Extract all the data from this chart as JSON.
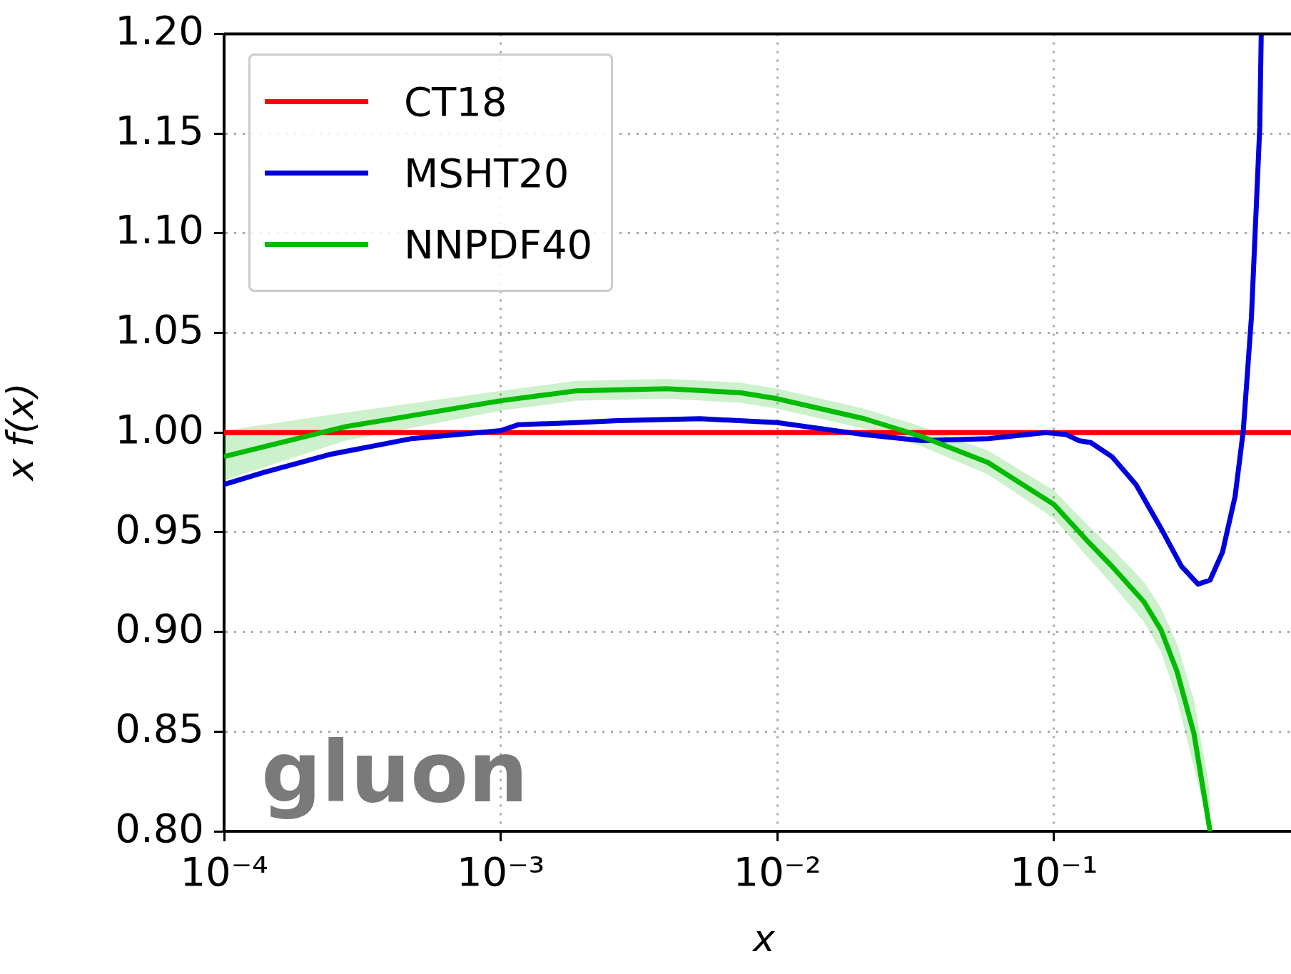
{
  "chart_data": {
    "type": "line",
    "xlabel": "x",
    "ylabel": "x f(x)",
    "log": "x",
    "xlim": [
      0.0001,
      0.72
    ],
    "ylim": [
      0.8,
      1.2
    ],
    "xticks": [
      {
        "value": 0.0001,
        "label": "10⁻⁴"
      },
      {
        "value": 0.001,
        "label": "10⁻³"
      },
      {
        "value": 0.01,
        "label": "10⁻²"
      },
      {
        "value": 0.1,
        "label": "10⁻¹"
      }
    ],
    "yticks": [
      {
        "value": 0.8,
        "label": "0.80"
      },
      {
        "value": 0.85,
        "label": "0.85"
      },
      {
        "value": 0.9,
        "label": "0.90"
      },
      {
        "value": 0.95,
        "label": "0.95"
      },
      {
        "value": 1.0,
        "label": "1.00"
      },
      {
        "value": 1.05,
        "label": "1.05"
      },
      {
        "value": 1.1,
        "label": "1.10"
      },
      {
        "value": 1.15,
        "label": "1.15"
      },
      {
        "value": 1.2,
        "label": "1.20"
      }
    ],
    "grid": true,
    "legend": "top left",
    "marker": "none",
    "line_style": "solid",
    "annotations": [
      "gluon"
    ],
    "series": [
      {
        "name": "CT18",
        "color": "#ff0000",
        "x": [
          0.0001,
          0.72
        ],
        "values": [
          1.0,
          1.0
        ]
      },
      {
        "name": "MSHT20",
        "color": "#0000dd",
        "x": [
          0.0001,
          0.000139,
          0.00024,
          0.000477,
          0.001,
          0.00116,
          0.00188,
          0.00265,
          0.00525,
          0.01,
          0.0206,
          0.0334,
          0.0578,
          0.0934,
          0.111,
          0.123,
          0.136,
          0.162,
          0.198,
          0.244,
          0.289,
          0.332,
          0.367,
          0.407,
          0.452,
          0.484,
          0.518,
          0.555,
          0.562
        ],
        "values": [
          0.974,
          0.98,
          0.989,
          0.997,
          1.001,
          1.004,
          1.005,
          1.006,
          1.007,
          1.005,
          0.999,
          0.996,
          0.997,
          1.0,
          0.999,
          0.996,
          0.995,
          0.988,
          0.974,
          0.952,
          0.933,
          0.924,
          0.926,
          0.94,
          0.968,
          1.001,
          1.058,
          1.153,
          1.2
        ]
      },
      {
        "name": "NNPDF40",
        "color": "#00bb00",
        "x": [
          0.0001,
          0.000275,
          0.001,
          0.00188,
          0.00399,
          0.00739,
          0.01,
          0.0206,
          0.0334,
          0.0578,
          0.1,
          0.1315,
          0.162,
          0.212,
          0.244,
          0.279,
          0.321,
          0.367
        ],
        "values": [
          0.988,
          1.003,
          1.016,
          1.021,
          1.022,
          1.02,
          1.017,
          1.007,
          0.998,
          0.985,
          0.964,
          0.946,
          0.933,
          0.915,
          0.901,
          0.88,
          0.849,
          0.8
        ],
        "upper": [
          1.001,
          1.01,
          1.021,
          1.026,
          1.027,
          1.025,
          1.022,
          1.012,
          1.003,
          0.991,
          0.971,
          0.954,
          0.942,
          0.925,
          0.912,
          0.894,
          0.866,
          0.82
        ],
        "lower": [
          0.976,
          0.996,
          1.011,
          1.016,
          1.017,
          1.015,
          1.012,
          1.002,
          0.993,
          0.979,
          0.957,
          0.938,
          0.924,
          0.905,
          0.89,
          0.866,
          0.832,
          0.8
        ]
      }
    ]
  }
}
